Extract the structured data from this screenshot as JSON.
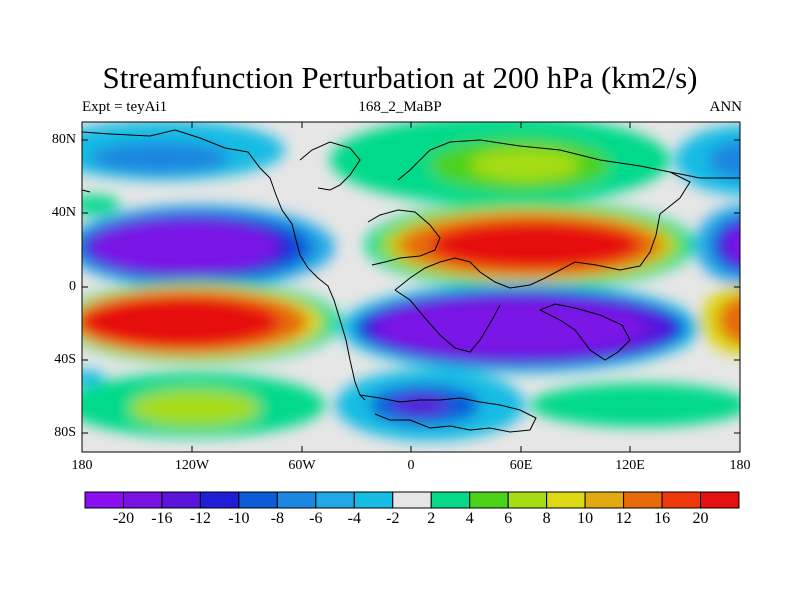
{
  "title": "Streamfunction Perturbation at 200 hPa (km2/s)",
  "subtitle_left": "Expt = teyAi1",
  "subtitle_center": "168_2_MaBP",
  "subtitle_right": "ANN",
  "lat_labels": [
    "80N",
    "40N",
    "0",
    "40S",
    "80S"
  ],
  "lon_labels": [
    "180",
    "120W",
    "60W",
    "0",
    "60E",
    "120E",
    "180"
  ],
  "colorbar": {
    "colors": [
      "#8a0ff0",
      "#7a12e6",
      "#5a14dc",
      "#1f1ed6",
      "#0c5cd8",
      "#1c86e0",
      "#21a8e6",
      "#16bce4",
      "#e6e6e6",
      "#06da8a",
      "#4cd21a",
      "#a6dc16",
      "#dcd814",
      "#e0aa10",
      "#e66a0a",
      "#ee380a",
      "#e61010"
    ],
    "labels": [
      "-20",
      "-16",
      "-12",
      "-10",
      "-8",
      "-6",
      "-4",
      "-2",
      "2",
      "4",
      "6",
      "8",
      "10",
      "12",
      "16",
      "20"
    ]
  }
}
